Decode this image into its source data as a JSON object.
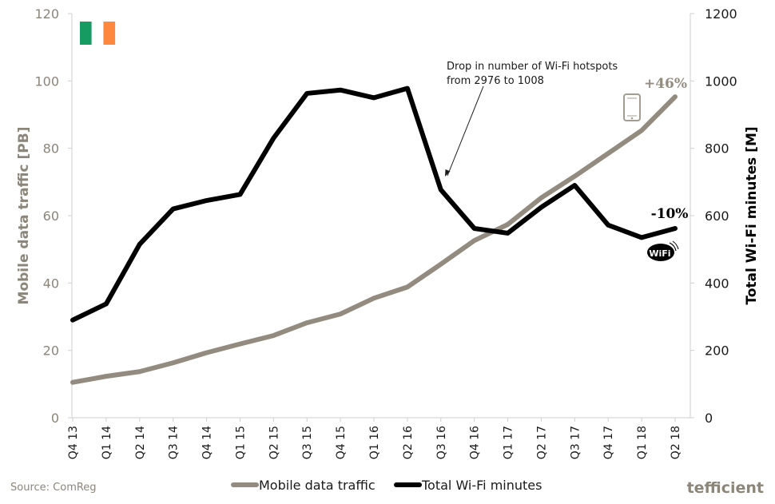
{
  "chart_data": {
    "type": "line",
    "categories": [
      "Q4 13",
      "Q1 14",
      "Q2 14",
      "Q3 14",
      "Q4 14",
      "Q1 15",
      "Q2 15",
      "Q3 15",
      "Q4 15",
      "Q1 16",
      "Q2 16",
      "Q3 16",
      "Q4 16",
      "Q1 17",
      "Q2 17",
      "Q3 17",
      "Q4 17",
      "Q1 18",
      "Q2 18"
    ],
    "series": [
      {
        "name": "Mobile data traffic",
        "axis": "left",
        "color": "#938b7f",
        "values": [
          10.5,
          12.3,
          13.7,
          16.3,
          19.3,
          21.9,
          24.4,
          28.2,
          30.8,
          35.5,
          38.8,
          45.6,
          52.6,
          57.4,
          65.3,
          71.7,
          78.5,
          85.3,
          95.3
        ]
      },
      {
        "name": "Total Wi-Fi minutes",
        "axis": "right",
        "color": "#000000",
        "values": [
          290,
          338,
          515,
          620,
          645,
          663,
          830,
          963,
          973,
          950,
          978,
          677,
          562,
          548,
          625,
          690,
          572,
          535,
          562
        ]
      }
    ],
    "ylabel_left": "Mobile data traffic [PB]",
    "ylabel_right": "Total Wi-Fi minutes [M]",
    "ylim_left": [
      0,
      120
    ],
    "ylim_right": [
      0,
      1200
    ],
    "yticks_left": [
      "0",
      "20",
      "40",
      "60",
      "80",
      "100",
      "120"
    ],
    "yticks_right": [
      "0",
      "200",
      "400",
      "600",
      "800",
      "1000",
      "1200"
    ],
    "grid": false,
    "legend_position": "bottom",
    "annotation": {
      "lines": [
        "Drop in number of Wi-Fi hotspots",
        "from 2976 to 1008"
      ],
      "points_to": "Q3 16"
    },
    "end_labels": {
      "mobile": "+46%",
      "wifi": "-10%"
    }
  },
  "source_text": "Source: ComReg",
  "brand_text": "tefficient",
  "wifi_badge_text": "WiFi",
  "flag_colors": [
    "#169b62",
    "#ffffff",
    "#ff883e"
  ]
}
